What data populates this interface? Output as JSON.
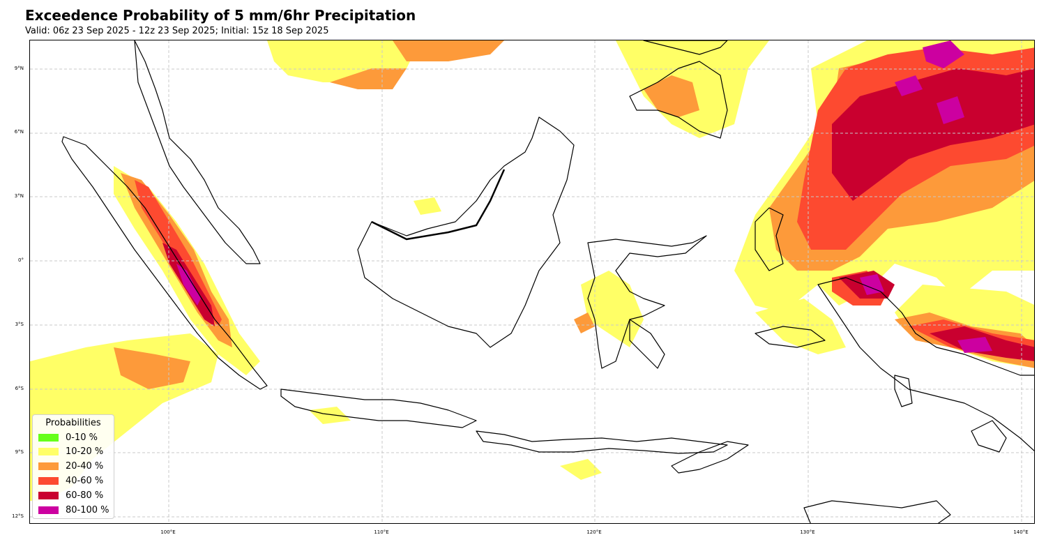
{
  "header": {
    "title": "Exceedence Probability of 5 mm/6hr Precipitation",
    "subtitle": "Valid: 06z 23 Sep 2025 - 12z 23 Sep 2025; Initial: 15z 18 Sep 2025"
  },
  "axes": {
    "lat_labels": [
      "9°N",
      "6°N",
      "3°N",
      "0°",
      "3°S",
      "6°S",
      "9°S",
      "12°S"
    ],
    "lon_labels": [
      "100°E",
      "110°E",
      "120°E",
      "130°E",
      "140°E"
    ],
    "grid": "dashed"
  },
  "legend": {
    "title": "Probabilities",
    "placement": "lower-left",
    "items": [
      {
        "label": "0-10 %",
        "color": "#66ff1a"
      },
      {
        "label": "10-20 %",
        "color": "#ffff66"
      },
      {
        "label": "20-40 %",
        "color": "#fd9a3a"
      },
      {
        "label": "40-60 %",
        "color": "#fd4a30"
      },
      {
        "label": "60-80 %",
        "color": "#c9002f"
      },
      {
        "label": "80-100 %",
        "color": "#cc00a0"
      }
    ]
  },
  "colors": {
    "coastline": "#000000",
    "grid": "#c8c8c8"
  }
}
